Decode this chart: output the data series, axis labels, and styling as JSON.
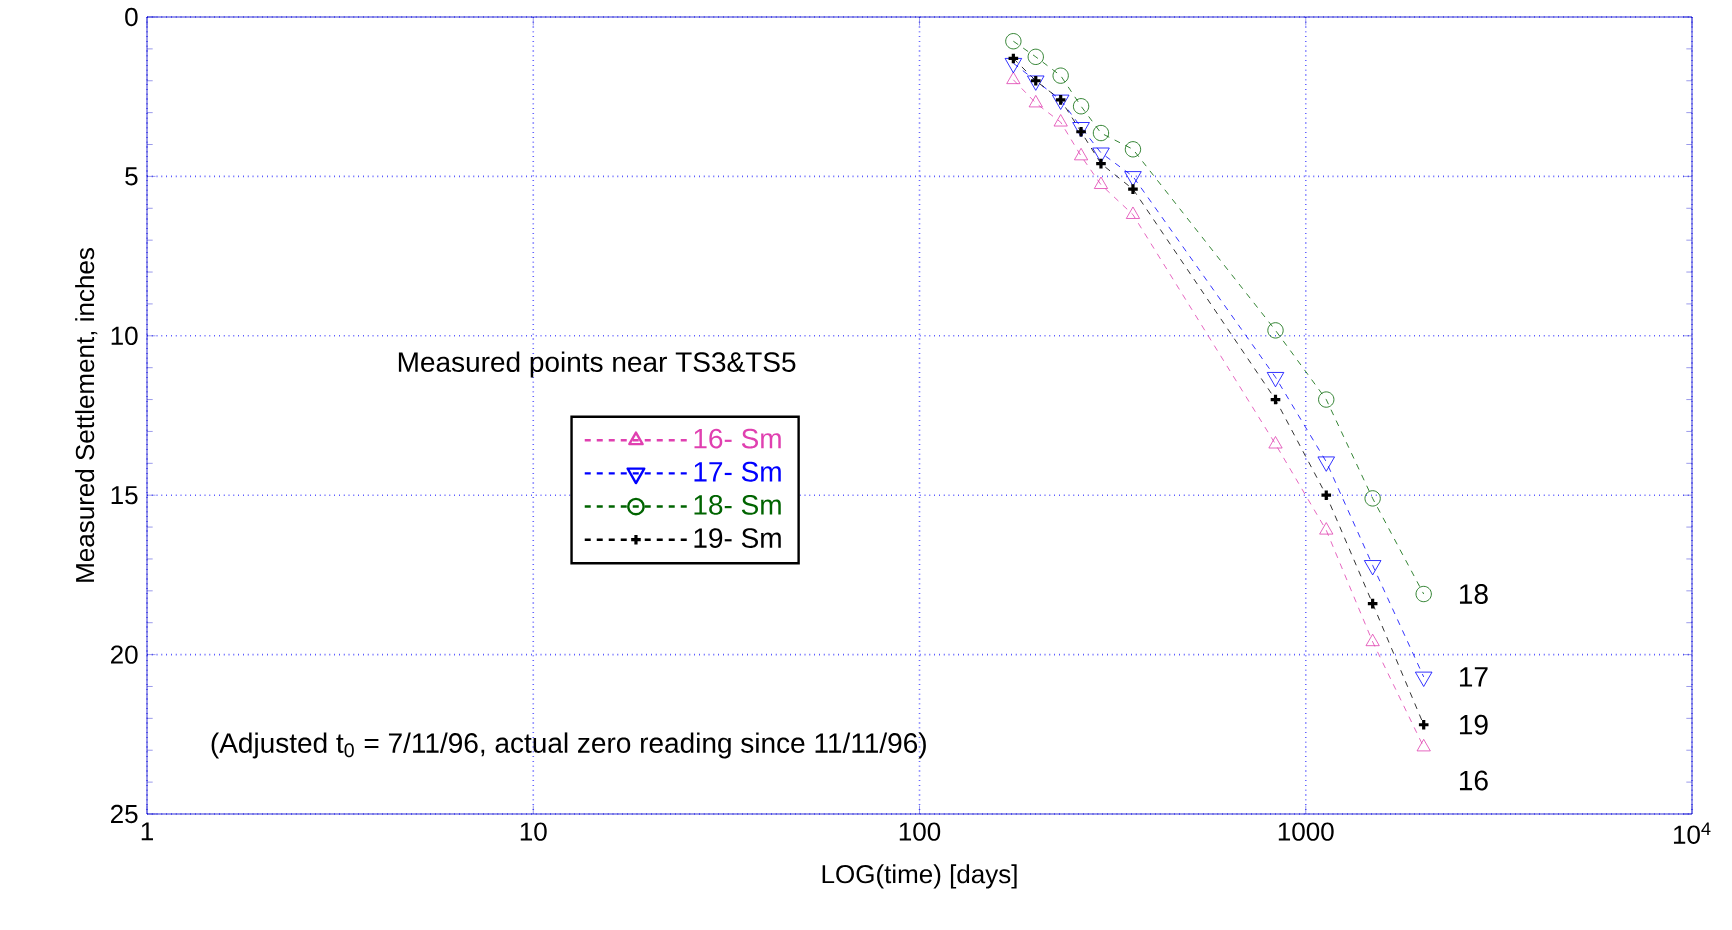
{
  "chart_data": {
    "type": "line",
    "xlabel": "LOG(time) [days]",
    "ylabel": "Measured Settlement, inches",
    "x": [
      175,
      200,
      232,
      262,
      295,
      357,
      835,
      1130,
      1490,
      2020
    ],
    "series": [
      {
        "name": "16- Sm",
        "color": "#e040b0",
        "marker": "triangle",
        "values": [
          1.97,
          2.7,
          3.3,
          4.36,
          5.26,
          6.2,
          13.4,
          16.1,
          19.6,
          22.9
        ]
      },
      {
        "name": "17- Sm",
        "color": "#0000ff",
        "marker": "triangle-down",
        "values": [
          1.45,
          2.0,
          2.6,
          3.46,
          4.26,
          5.0,
          11.3,
          13.95,
          17.2,
          20.7
        ]
      },
      {
        "name": "18- Sm",
        "color": "#006400",
        "marker": "circle",
        "values": [
          0.76,
          1.25,
          1.84,
          2.8,
          3.64,
          4.15,
          9.83,
          12.0,
          15.1,
          18.1
        ]
      },
      {
        "name": "19- Sm",
        "color": "#000000",
        "marker": "cross",
        "values": [
          1.3,
          2.0,
          2.6,
          3.6,
          4.6,
          5.4,
          12.0,
          15.0,
          18.4,
          22.2
        ]
      }
    ],
    "log": "x",
    "line_style": "dashed",
    "grid": true,
    "legend": "left",
    "xlim": [
      1,
      10000
    ],
    "xticks": [
      1,
      10,
      100,
      1000,
      {
        "value": 10000,
        "label": "10$^{4}$"
      }
    ],
    "ylim": [
      25,
      0
    ],
    "yticks": [
      0,
      5,
      10,
      15,
      20,
      25
    ],
    "annotations": [
      "Measured points near TS3&TS5",
      "(Adjusted t$_{0}$ = 7/11/96, actual zero reading since 11/11/96)",
      "18",
      "17",
      "19",
      "16"
    ]
  }
}
